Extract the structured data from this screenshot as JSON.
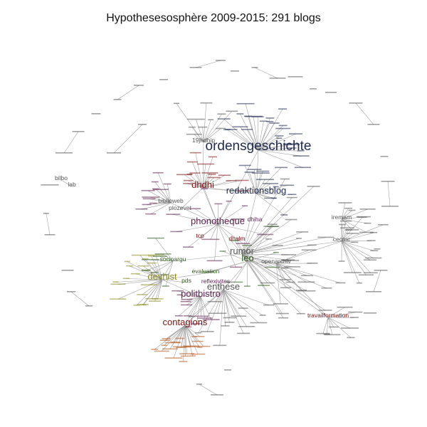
{
  "title": "Hypothesesosphère 2009-2015: 291 blogs",
  "colors": {
    "background": "#ffffff",
    "edge": "#9a9a9a",
    "dark_blue": "#1e2a4e",
    "purple": "#5b1f4e",
    "dark_red": "#7a1414",
    "olive": "#8c8c1e",
    "green": "#2f5a1e",
    "orange": "#b5561a",
    "gray": "#555555"
  },
  "nodes": [
    {
      "id": "ordensgeschichte",
      "label": "ordensgeschichte",
      "size": "xl",
      "color": "dark_blue"
    },
    {
      "id": "redaktionsblog",
      "label": "redaktionsblog",
      "size": "l",
      "color": "dark_blue"
    },
    {
      "id": "dhdhi",
      "label": "dhdhi",
      "size": "l",
      "color": "dark_red"
    },
    {
      "id": "phonotheque",
      "label": "phonotheque",
      "size": "l",
      "color": "purple"
    },
    {
      "id": "rumor",
      "label": "rumor",
      "size": "l",
      "color": "gray"
    },
    {
      "id": "leo",
      "label": "leo",
      "size": "l",
      "color": "green"
    },
    {
      "id": "devhist",
      "label": "devhist",
      "size": "l",
      "color": "olive"
    },
    {
      "id": "politbistro",
      "label": "politbistro",
      "size": "l",
      "color": "purple"
    },
    {
      "id": "enthese",
      "label": "enthese",
      "size": "l",
      "color": "gray"
    },
    {
      "id": "contagions",
      "label": "contagions",
      "size": "l",
      "color": "dark_red"
    },
    {
      "id": "19jhdhip",
      "label": "19jhdhip",
      "size": "m",
      "color": "gray"
    },
    {
      "id": "biblioweb",
      "label": "biblioweb",
      "size": "m",
      "color": "gray"
    },
    {
      "id": "plozevet",
      "label": "plozevet",
      "size": "m",
      "color": "gray"
    },
    {
      "id": "bilbo",
      "label": "bilbo",
      "size": "m",
      "color": "gray"
    },
    {
      "id": "lab",
      "label": "lab",
      "size": "m",
      "color": "gray"
    },
    {
      "id": "dhiha",
      "label": "dhiha",
      "size": "m",
      "color": "purple"
    },
    {
      "id": "tcp",
      "label": "tcp",
      "size": "m",
      "color": "dark_red"
    },
    {
      "id": "dhalm",
      "label": "dhalm",
      "size": "m",
      "color": "dark_red"
    },
    {
      "id": "iremam",
      "label": "iremam",
      "size": "m",
      "color": "gray"
    },
    {
      "id": "cecmc",
      "label": "cecmc",
      "size": "m",
      "color": "gray"
    },
    {
      "id": "socioargu",
      "label": "socioargu",
      "size": "m",
      "color": "green"
    },
    {
      "id": "openarchiv",
      "label": "openarchiv",
      "size": "m",
      "color": "gray"
    },
    {
      "id": "evaluation",
      "label": "evaluation",
      "size": "m",
      "color": "green"
    },
    {
      "id": "pds",
      "label": "pds",
      "size": "m",
      "color": "green"
    },
    {
      "id": "reflexivites",
      "label": "reflexivites",
      "size": "m",
      "color": "purple"
    },
    {
      "id": "travailformation",
      "label": "travailformation",
      "size": "m",
      "color": "dark_red"
    }
  ]
}
